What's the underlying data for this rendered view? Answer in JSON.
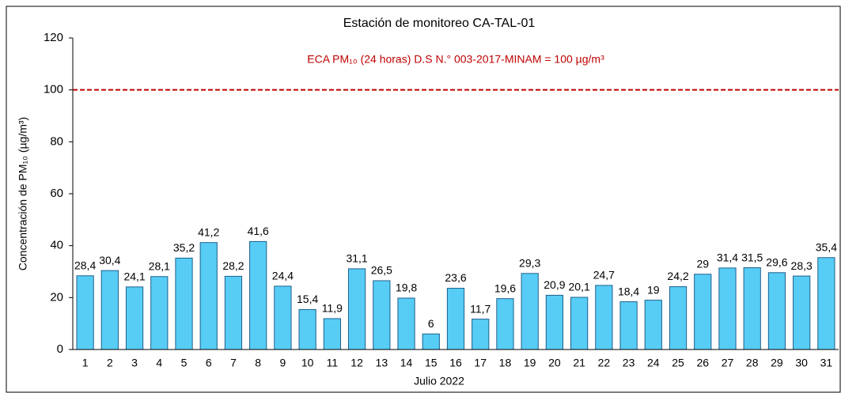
{
  "chart_data": {
    "type": "bar",
    "title": "Estación de monitoreo CA-TAL-01",
    "x_label": "Julio 2022",
    "y_label": "Concentración de PM₁₀ (µg/m³)",
    "categories": [
      "1",
      "2",
      "3",
      "4",
      "5",
      "6",
      "7",
      "8",
      "9",
      "10",
      "11",
      "12",
      "13",
      "14",
      "15",
      "16",
      "17",
      "18",
      "19",
      "20",
      "21",
      "22",
      "23",
      "24",
      "25",
      "26",
      "27",
      "28",
      "29",
      "30",
      "31"
    ],
    "values": [
      28.4,
      30.4,
      24.1,
      28.1,
      35.2,
      41.2,
      28.2,
      41.6,
      24.4,
      15.4,
      11.9,
      31.1,
      26.5,
      19.8,
      6,
      23.6,
      11.7,
      19.6,
      29.3,
      20.9,
      20.1,
      24.7,
      18.4,
      19,
      24.2,
      29,
      31.4,
      31.5,
      29.6,
      28.3,
      35.4
    ],
    "value_labels": [
      "28,4",
      "30,4",
      "24,1",
      "28,1",
      "35,2",
      "41,2",
      "28,2",
      "41,6",
      "24,4",
      "15,4",
      "11,9",
      "31,1",
      "26,5",
      "19,8",
      "6",
      "23,6",
      "11,7",
      "19,6",
      "29,3",
      "20,9",
      "20,1",
      "24,7",
      "18,4",
      "19",
      "24,2",
      "29",
      "31,4",
      "31,5",
      "29,6",
      "28,3",
      "35,4"
    ],
    "color": "#57cdf6",
    "ylim": [
      0,
      120
    ],
    "yticks": [
      0,
      20,
      40,
      60,
      80,
      100,
      120
    ],
    "reference_line": {
      "value": 100,
      "label": "ECA PM₁₀ (24 horas) D.S N.° 003-2017-MINAM = 100 µg/m³",
      "color": "#c00000"
    }
  }
}
